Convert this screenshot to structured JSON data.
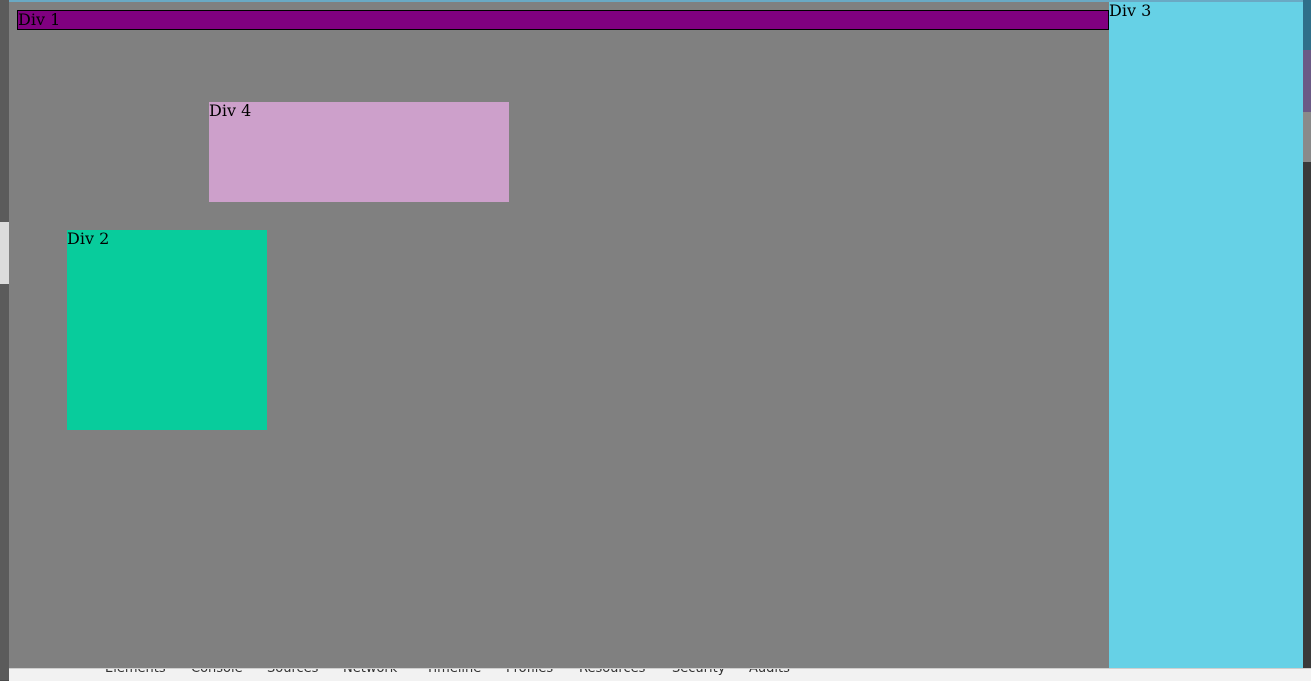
{
  "page": {
    "div1_label": "Div 1",
    "div2_label": "Div 2",
    "div3_label": "Div 3",
    "div4_label": "Div 4"
  },
  "colors": {
    "viewport_bg": "#808080",
    "div1": "#800080",
    "div2": "#08cc9c",
    "div3": "#66d1e6",
    "div4": "#cda0cb"
  },
  "devtools": {
    "tabs": [
      "Elements",
      "Console",
      "Sources",
      "Network",
      "Timeline",
      "Profiles",
      "Resources",
      "Security",
      "Audits"
    ]
  }
}
